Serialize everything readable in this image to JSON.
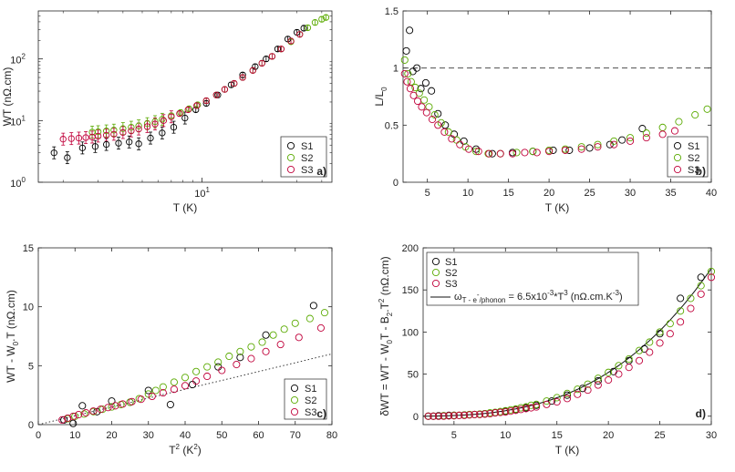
{
  "chart_data": [
    {
      "id": "a",
      "type": "scatter",
      "panel_label": "a)",
      "xlabel": "T (K)",
      "ylabel": "WT (nΩ.cm)",
      "xscale": "log",
      "yscale": "log",
      "xlim": [
        1.5,
        45
      ],
      "ylim": [
        1,
        600
      ],
      "x_ticks": [
        {
          "value": 10,
          "label": "10",
          "exp": "1"
        }
      ],
      "y_ticks": [
        {
          "value": 1,
          "label": "10",
          "exp": "0"
        },
        {
          "value": 10,
          "label": "10",
          "exp": "1"
        },
        {
          "value": 100,
          "label": "10",
          "exp": "2"
        }
      ],
      "legend_position": "bottom-right",
      "series": [
        {
          "name": "S1",
          "color": "#000000",
          "x": [
            1.8,
            2.1,
            2.5,
            2.9,
            3.3,
            3.8,
            4.3,
            4.8,
            5.5,
            6.3,
            7.2,
            8.2,
            9.3,
            10.5,
            12,
            14,
            16,
            18.5,
            21,
            24,
            27,
            30,
            32.5
          ],
          "y": [
            3.0,
            2.5,
            3.6,
            3.8,
            4.1,
            4.3,
            4.5,
            4.2,
            5.2,
            6.3,
            7.8,
            11,
            15,
            19,
            26,
            38,
            55,
            75,
            100,
            145,
            210,
            270,
            315
          ]
        },
        {
          "name": "S2",
          "color": "#5aaa00",
          "x": [
            2.8,
            3.0,
            3.3,
            3.6,
            4.0,
            4.4,
            4.8,
            5.3,
            5.8,
            6.3,
            7.0,
            7.8,
            8.6,
            9.5,
            10.5,
            11.8,
            13,
            14.5,
            16,
            18,
            20,
            22.5,
            25,
            28,
            31,
            34,
            37,
            40,
            42
          ],
          "y": [
            6.5,
            6.6,
            6.8,
            7.0,
            7.4,
            7.8,
            8.2,
            8.9,
            9.6,
            10.5,
            12,
            13.5,
            15.5,
            18,
            21,
            26,
            32,
            40,
            50,
            65,
            85,
            110,
            145,
            190,
            250,
            320,
            390,
            440,
            470
          ]
        },
        {
          "name": "S3",
          "color": "#c0003a",
          "x": [
            2.0,
            2.2,
            2.4,
            2.6,
            2.8,
            3.0,
            3.3,
            3.6,
            4.0,
            4.4,
            4.8,
            5.3,
            5.8,
            6.4,
            7.0,
            7.7,
            8.5,
            9.4,
            10.5,
            11.8,
            13,
            14.5,
            16,
            18,
            20,
            22.5,
            25,
            28,
            31
          ],
          "y": [
            5.0,
            5.1,
            5.2,
            5.3,
            5.4,
            5.6,
            5.8,
            6.0,
            6.4,
            6.8,
            7.3,
            8.0,
            8.8,
            10,
            11.5,
            13,
            15,
            17.5,
            21,
            26,
            32,
            40,
            50,
            65,
            85,
            110,
            145,
            195,
            250
          ]
        }
      ]
    },
    {
      "id": "b",
      "type": "scatter",
      "panel_label": "b)",
      "xlabel": "T (K)",
      "ylabel_main": "L/L",
      "ylabel_sub": "0",
      "xlim": [
        2,
        40
      ],
      "ylim": [
        0,
        1.5
      ],
      "x_ticks": [
        5,
        10,
        15,
        20,
        25,
        30,
        35,
        40
      ],
      "y_ticks": [
        0,
        0.5,
        1,
        1.5
      ],
      "y_tick_labels": [
        "0",
        "0.5",
        "1",
        "1.5"
      ],
      "reference_line": {
        "y": 1,
        "style": "dashed"
      },
      "legend_position": "bottom-right",
      "series": [
        {
          "name": "S1",
          "color": "#000000",
          "x": [
            2.4,
            2.8,
            3.2,
            3.7,
            4.2,
            4.8,
            5.5,
            6.3,
            7.2,
            8.3,
            9.5,
            11,
            13,
            15.5,
            18,
            20.5,
            22.5,
            25,
            27.5,
            29,
            31.5
          ],
          "y": [
            1.15,
            1.33,
            0.97,
            1.0,
            0.82,
            0.87,
            0.8,
            0.6,
            0.5,
            0.42,
            0.36,
            0.29,
            0.25,
            0.26,
            0.27,
            0.28,
            0.28,
            0.3,
            0.33,
            0.37,
            0.47
          ]
        },
        {
          "name": "S2",
          "color": "#5aaa00",
          "x": [
            2.2,
            2.6,
            3.0,
            3.5,
            4.0,
            4.6,
            5.2,
            5.9,
            6.7,
            7.6,
            8.6,
            9.7,
            11,
            12.5,
            14,
            16,
            18,
            20,
            22,
            24,
            26,
            28,
            30,
            32,
            34,
            36,
            38,
            39.5
          ],
          "y": [
            1.07,
            0.95,
            0.88,
            0.83,
            0.78,
            0.72,
            0.66,
            0.59,
            0.52,
            0.44,
            0.37,
            0.31,
            0.27,
            0.25,
            0.25,
            0.26,
            0.27,
            0.28,
            0.29,
            0.31,
            0.33,
            0.36,
            0.39,
            0.43,
            0.48,
            0.53,
            0.59,
            0.64
          ]
        },
        {
          "name": "S3",
          "color": "#c0003a",
          "x": [
            2.2,
            2.5,
            2.9,
            3.3,
            3.8,
            4.3,
            4.9,
            5.6,
            6.3,
            7.1,
            8.0,
            9.0,
            10.1,
            11.3,
            12.6,
            14,
            15.5,
            17,
            18.5,
            20,
            22,
            24,
            26,
            28,
            30,
            32,
            34,
            35.5
          ],
          "y": [
            0.95,
            0.88,
            0.82,
            0.76,
            0.71,
            0.66,
            0.61,
            0.55,
            0.5,
            0.44,
            0.38,
            0.33,
            0.29,
            0.27,
            0.25,
            0.25,
            0.25,
            0.26,
            0.26,
            0.27,
            0.28,
            0.29,
            0.31,
            0.33,
            0.36,
            0.39,
            0.42,
            0.45
          ]
        }
      ]
    },
    {
      "id": "c",
      "type": "scatter",
      "panel_label": "c)",
      "xlabel_main": "T",
      "xlabel_sup": "2",
      "xlabel_rest": " (K",
      "xlabel_sup2": "2",
      "xlabel_end": ")",
      "ylabel_main": "WT - W",
      "ylabel_sub": "0",
      "ylabel_end": ".T (nΩ.cm)",
      "xlim": [
        0,
        80
      ],
      "ylim": [
        0,
        15
      ],
      "x_ticks": [
        0,
        10,
        20,
        30,
        40,
        50,
        60,
        70,
        80
      ],
      "y_ticks": [
        0,
        5,
        10,
        15
      ],
      "fit_line": {
        "style": "dotted",
        "x": [
          0,
          80
        ],
        "y": [
          0,
          6.0
        ]
      },
      "legend_position": "bottom-right",
      "series": [
        {
          "name": "S1",
          "color": "#000000",
          "x": [
            7,
            9.5,
            12,
            16,
            20,
            25,
            30,
            36,
            42,
            49,
            55,
            62,
            75
          ],
          "y": [
            0.4,
            0.1,
            1.6,
            1.1,
            2.0,
            1.9,
            2.9,
            1.7,
            3.4,
            4.9,
            5.7,
            7.6,
            10.1
          ]
        },
        {
          "name": "S2",
          "color": "#5aaa00",
          "x": [
            8,
            10,
            12.5,
            15,
            17.5,
            20,
            22.5,
            25,
            27.5,
            30,
            32,
            34,
            37,
            40,
            43,
            46,
            49,
            52,
            55,
            58,
            61,
            64,
            67,
            70,
            74,
            78
          ],
          "y": [
            0.5,
            0.7,
            0.9,
            1.1,
            1.3,
            1.5,
            1.7,
            1.9,
            2.2,
            2.6,
            2.9,
            3.2,
            3.6,
            4.0,
            4.5,
            4.9,
            5.3,
            5.8,
            6.2,
            6.6,
            7.0,
            7.6,
            8.1,
            8.6,
            9.0,
            9.5
          ]
        },
        {
          "name": "S3",
          "color": "#c0003a",
          "x": [
            6.5,
            8,
            9.5,
            11,
            13,
            15,
            17,
            19,
            21,
            23,
            25.5,
            28,
            31,
            34,
            37,
            40,
            43,
            46,
            50,
            54,
            58,
            62,
            66,
            71,
            77
          ],
          "y": [
            0.4,
            0.55,
            0.7,
            0.85,
            1.0,
            1.15,
            1.3,
            1.45,
            1.6,
            1.75,
            1.95,
            2.15,
            2.4,
            2.7,
            3.0,
            3.3,
            3.7,
            4.1,
            4.6,
            5.1,
            5.6,
            6.2,
            6.8,
            7.4,
            8.2
          ]
        }
      ]
    },
    {
      "id": "d",
      "type": "scatter",
      "panel_label": "d)",
      "xlabel": "T (K)",
      "ylabel_main": "δWT = WT - W",
      "ylabel_sub": "0",
      "ylabel_mid": "T - B",
      "ylabel_sub2": "2",
      "ylabel_mid2": ".T",
      "ylabel_sup": "2",
      "ylabel_end": " (nΩ.cm)",
      "xlim": [
        2,
        30
      ],
      "ylim": [
        -10,
        200
      ],
      "x_ticks": [
        5,
        10,
        15,
        20,
        25,
        30
      ],
      "y_ticks": [
        0,
        50,
        100,
        150,
        200
      ],
      "fit_line": {
        "style": "solid",
        "coef": 0.0065,
        "power": 3
      },
      "fit_label": {
        "omega": "ω",
        "sub": "T - e",
        "sup": "-",
        "sub2": "/phonon",
        "rest": " = 6.5x10",
        "exp": "-3",
        "rest2": "*T",
        "exp2": "3",
        "rest3": " (nΩ.cm.K",
        "exp3": "-3",
        "end": ")"
      },
      "legend_position": "top-left",
      "series": [
        {
          "name": "S1",
          "color": "#000000",
          "x": [
            2.5,
            3,
            3.5,
            4,
            4.5,
            5,
            6,
            7,
            8,
            9,
            10,
            11,
            12,
            13,
            14.5,
            16,
            17.5,
            19,
            20.5,
            22,
            23.5,
            25,
            27,
            29
          ],
          "y": [
            0,
            0,
            0.5,
            0.5,
            1,
            1,
            1.5,
            2,
            3,
            4,
            6,
            8,
            10,
            13,
            18,
            25,
            33,
            42,
            53,
            66,
            80,
            98,
            140,
            165
          ]
        },
        {
          "name": "S2",
          "color": "#5aaa00",
          "x": [
            2.5,
            3,
            3.5,
            4,
            4.5,
            5,
            5.5,
            6,
            6.5,
            7,
            7.5,
            8,
            8.5,
            9,
            9.5,
            10,
            10.5,
            11,
            11.5,
            12,
            12.5,
            13,
            14,
            15,
            16,
            17,
            18,
            19,
            20,
            21,
            22,
            23,
            24,
            25,
            26,
            27,
            28,
            29,
            30
          ],
          "y": [
            0,
            0,
            0,
            0.5,
            0.5,
            1,
            1,
            1.5,
            2,
            2,
            2.5,
            3,
            4,
            4.5,
            5.5,
            6.5,
            7.5,
            8.5,
            10,
            11,
            13,
            14,
            18,
            22,
            27,
            32,
            38,
            45,
            52,
            60,
            68,
            78,
            88,
            100,
            110,
            125,
            140,
            155,
            172
          ]
        },
        {
          "name": "S3",
          "color": "#c0003a",
          "x": [
            2.5,
            3,
            3.5,
            4,
            4.5,
            5,
            5.5,
            6,
            6.5,
            7,
            7.5,
            8,
            8.5,
            9,
            9.5,
            10,
            10.5,
            11,
            11.5,
            12,
            12.5,
            13,
            14,
            15,
            16,
            17,
            18,
            19,
            20,
            21,
            22,
            23,
            24,
            25,
            26,
            27,
            28,
            29,
            30
          ],
          "y": [
            0,
            0,
            0,
            0,
            0.5,
            0.5,
            1,
            1,
            1.5,
            2,
            2,
            2.5,
            3,
            4,
            4.5,
            5,
            6,
            7,
            8,
            9,
            10,
            11,
            14,
            17,
            21,
            26,
            31,
            37,
            43,
            50,
            58,
            66,
            76,
            87,
            98,
            112,
            128,
            145,
            165
          ]
        }
      ]
    }
  ]
}
